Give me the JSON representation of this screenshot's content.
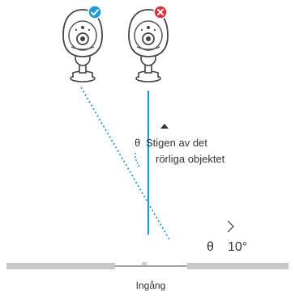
{
  "cameras": [
    {
      "status": "correct",
      "badge_icon": "checkmark-icon",
      "badge_color": "#1a9ad6"
    },
    {
      "status": "incorrect",
      "badge_icon": "cross-icon",
      "badge_color": "#e0303b"
    }
  ],
  "colors": {
    "blue": "#1a9ad6",
    "red": "#e0303b",
    "wall": "#c8c8c8",
    "text": "#333333"
  },
  "labels": {
    "angle_symbol": "θ",
    "angle_caption_line1": "Stigen av det",
    "angle_caption_line2": "rörliga objektet",
    "angle_value_symbol": "θ",
    "angle_value": "10°",
    "entrance": "Ingång"
  }
}
